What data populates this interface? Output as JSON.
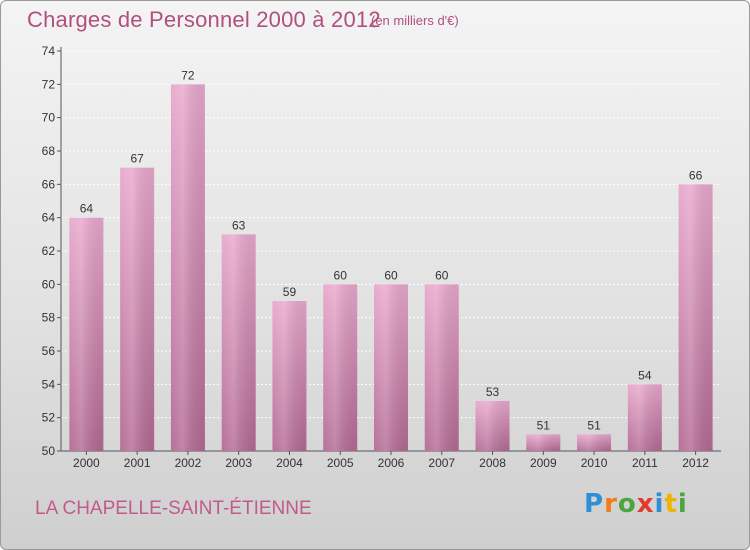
{
  "header": {
    "title": "Charges de Personnel 2000 à 2012",
    "subtitle": "(en milliers d'€)"
  },
  "footer": {
    "commune": "LA CHAPELLE-SAINT-ÉTIENNE",
    "logo": {
      "letters": [
        "P",
        "r",
        "o",
        "x",
        "i",
        "t",
        "i"
      ]
    }
  },
  "colors": {
    "title": "#b0507e",
    "bar_top": "#e8a8cc",
    "bar_bottom": "#b36a93",
    "logo_letters": [
      "#2e8fd6",
      "#f07d16",
      "#4aa63c",
      "#e23a2f",
      "#2e8fd6",
      "#f0b400",
      "#4aa63c"
    ]
  },
  "chart_data": {
    "type": "bar",
    "categories": [
      "2000",
      "2001",
      "2002",
      "2003",
      "2004",
      "2005",
      "2006",
      "2007",
      "2008",
      "2009",
      "2010",
      "2011",
      "2012"
    ],
    "values": [
      64,
      67,
      72,
      63,
      59,
      60,
      60,
      60,
      53,
      51,
      51,
      54,
      66
    ],
    "ylim": [
      50,
      74
    ],
    "yticks": [
      50,
      52,
      54,
      56,
      58,
      60,
      62,
      64,
      66,
      68,
      70,
      72,
      74
    ],
    "grid": true
  }
}
